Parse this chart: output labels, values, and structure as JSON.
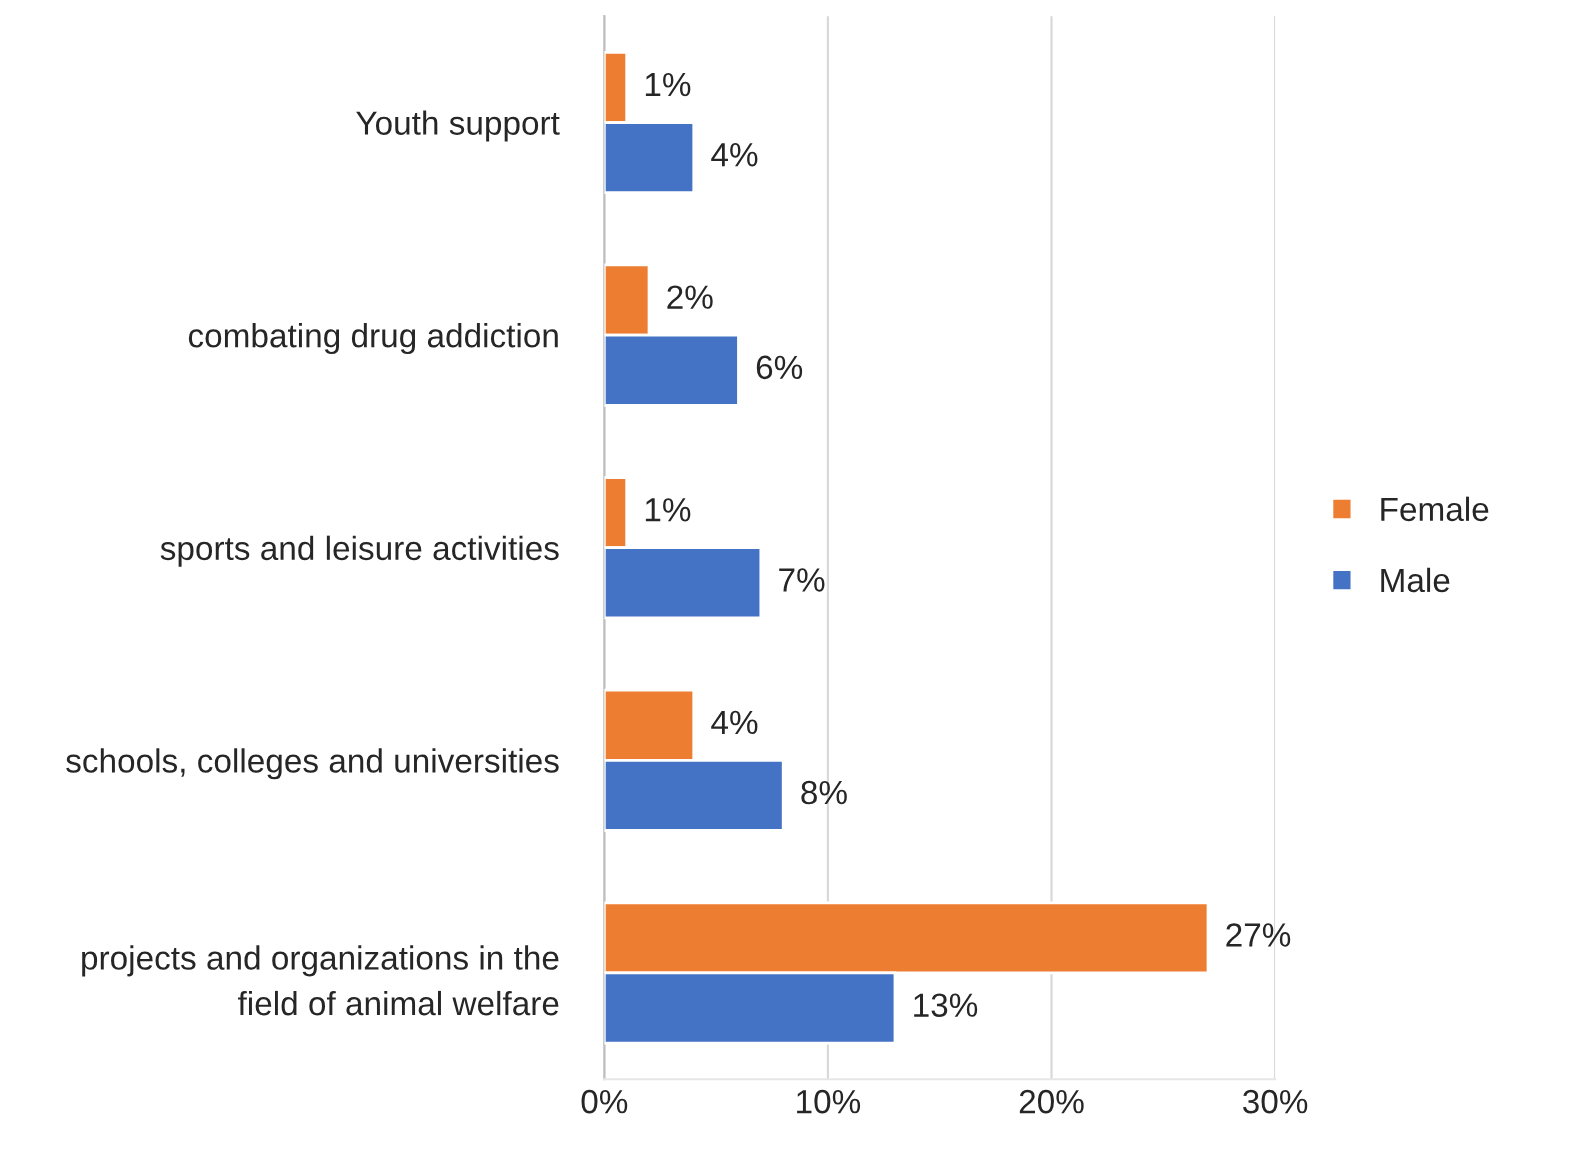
{
  "chart_data": {
    "type": "bar",
    "orientation": "horizontal",
    "categories": [
      "Youth support",
      "combating drug addiction",
      "sports and leisure activities",
      "schools, colleges and universities",
      "projects and organizations in the\nfield of animal welfare"
    ],
    "series": [
      {
        "name": "Female",
        "color": "#ed7d31",
        "values": [
          1,
          2,
          1,
          4,
          27
        ],
        "value_labels": [
          "1%",
          "2%",
          "1%",
          "4%",
          "27%"
        ]
      },
      {
        "name": "Male",
        "color": "#4472c4",
        "values": [
          4,
          6,
          7,
          8,
          13
        ],
        "value_labels": [
          "4%",
          "6%",
          "7%",
          "8%",
          "13%"
        ]
      }
    ],
    "xlim": [
      0,
      30
    ],
    "xticks": [
      {
        "value": 0,
        "label": "0%"
      },
      {
        "value": 10,
        "label": "10%"
      },
      {
        "value": 20,
        "label": "20%"
      },
      {
        "value": 30,
        "label": "30%"
      }
    ],
    "grid": "x",
    "legend": "right"
  }
}
